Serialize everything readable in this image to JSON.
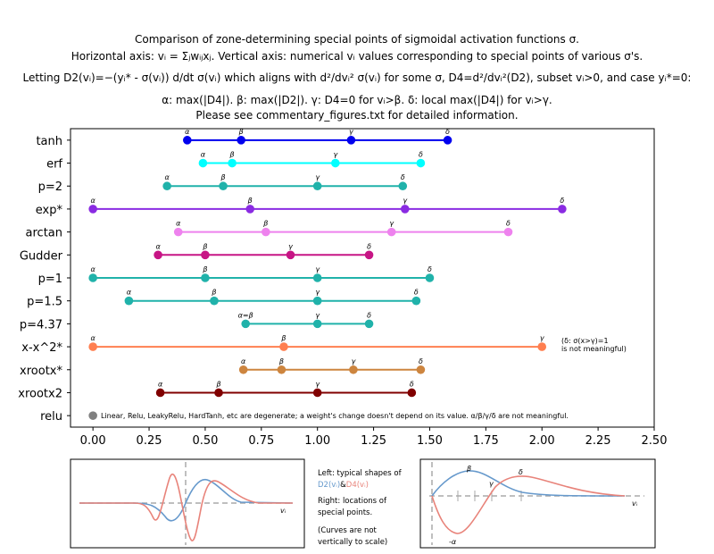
{
  "title_lines": [
    "Comparison of zone-determining special points of sigmoidal activation functions σ.",
    "Horizontal axis: vᵢ = Σⱼwᵢⱼxⱼ.  Vertical axis: numerical vᵢ values corresponding to special points of various σ's.",
    "Letting D2(vᵢ)=−(yᵢ* - σ(vᵢ)) d/dt σ(vᵢ) which aligns with d²/dvᵢ² σ(vᵢ) for some σ, D4=d²/dvᵢ²(D2), subset vᵢ>0, and case yᵢ*=0:",
    "α: max(|D4|). β: max(|D2|). γ: D4=0 for vᵢ>β. δ: local max(|D4|) for vᵢ>γ.",
    "Please see commentary_figures.txt for detailed information."
  ],
  "chart_data": {
    "type": "scatter",
    "xlim": [
      -0.1,
      2.5
    ],
    "xticks": [
      "0.00",
      "0.25",
      "0.50",
      "0.75",
      "1.00",
      "1.25",
      "1.50",
      "1.75",
      "2.00",
      "2.25",
      "2.50"
    ],
    "xtick_values": [
      0,
      0.25,
      0.5,
      0.75,
      1.0,
      1.25,
      1.5,
      1.75,
      2.0,
      2.25,
      2.5
    ],
    "grid": false,
    "series": [
      {
        "name": "tanh",
        "color": "#0000ee",
        "values": [
          0.42,
          0.66,
          1.15,
          1.58
        ],
        "labels": [
          "α",
          "β",
          "γ",
          "δ"
        ]
      },
      {
        "name": "erf",
        "color": "#00ffff",
        "values": [
          0.49,
          0.62,
          1.08,
          1.46
        ],
        "labels": [
          "α",
          "β",
          "γ",
          "δ"
        ]
      },
      {
        "name": "p=2",
        "color": "#20b2aa",
        "values": [
          0.33,
          0.58,
          1.0,
          1.38
        ],
        "labels": [
          "α",
          "β",
          "γ",
          "δ"
        ]
      },
      {
        "name": "exp*",
        "color": "#8a2be2",
        "values": [
          0.0,
          0.7,
          1.39,
          2.09
        ],
        "labels": [
          "α",
          "β",
          "γ",
          "δ"
        ]
      },
      {
        "name": "arctan",
        "color": "#ee82ee",
        "values": [
          0.38,
          0.77,
          1.33,
          1.85
        ],
        "labels": [
          "α",
          "β",
          "γ",
          "δ"
        ]
      },
      {
        "name": "Gudder",
        "color": "#c71585",
        "values": [
          0.29,
          0.5,
          0.88,
          1.23
        ],
        "labels": [
          "α",
          "β",
          "γ",
          "δ"
        ]
      },
      {
        "name": "p=1",
        "color": "#20b2aa",
        "values": [
          0.0,
          0.5,
          1.0,
          1.5
        ],
        "labels": [
          "α",
          "β",
          "γ",
          "δ"
        ]
      },
      {
        "name": "p=1.5",
        "color": "#20b2aa",
        "values": [
          0.16,
          0.54,
          1.0,
          1.44
        ],
        "labels": [
          "α",
          "β",
          "γ",
          "δ"
        ]
      },
      {
        "name": "p=4.37",
        "color": "#20b2aa",
        "values": [
          0.68,
          1.0,
          1.23
        ],
        "labels": [
          "α=β",
          "γ",
          "δ"
        ]
      },
      {
        "name": "x-x^2*",
        "color": "#ff7f50",
        "values": [
          0.0,
          0.85,
          2.0
        ],
        "labels": [
          "α",
          "β",
          "γ"
        ]
      },
      {
        "name": "xrootx*",
        "color": "#cd853f",
        "values": [
          0.67,
          0.84,
          1.16,
          1.46
        ],
        "labels": [
          "α",
          "β",
          "γ",
          "δ"
        ]
      },
      {
        "name": "xrootx2",
        "color": "#800000",
        "values": [
          0.3,
          0.56,
          1.0,
          1.42
        ],
        "labels": [
          "α",
          "β",
          "γ",
          "δ"
        ]
      },
      {
        "name": "relu",
        "color": "#808080",
        "values": [
          0.0
        ],
        "labels": [
          ""
        ]
      }
    ],
    "annotations": {
      "xx2_note_1": "(δ: σ(x>γ)=1",
      "xx2_note_2": "is not meaningful)",
      "relu_note": "Linear, Relu, LeakyRelu, HardTanh, etc are degenerate; a weight's change doesn't depend on its value. α/β/γ/δ are not meaningful."
    }
  },
  "inset_left": {
    "xlabel": "vᵢ",
    "curve_colors": {
      "D2": "#6699cc",
      "D4": "#e8837a"
    }
  },
  "middle_text": {
    "line1": "Left: typical shapes of",
    "line2_a": "D2(vᵢ)",
    "line2_b": "&",
    "line2_c": "D4(vᵢ)",
    "line3": "Right: locations of",
    "line4": "special points.",
    "line5": "(Curves are not",
    "line6": "vertically to scale)"
  },
  "inset_right": {
    "xlabel": "vᵢ",
    "labels": {
      "beta": "β",
      "gamma": "γ",
      "delta": "δ",
      "alpha": "-α"
    }
  }
}
